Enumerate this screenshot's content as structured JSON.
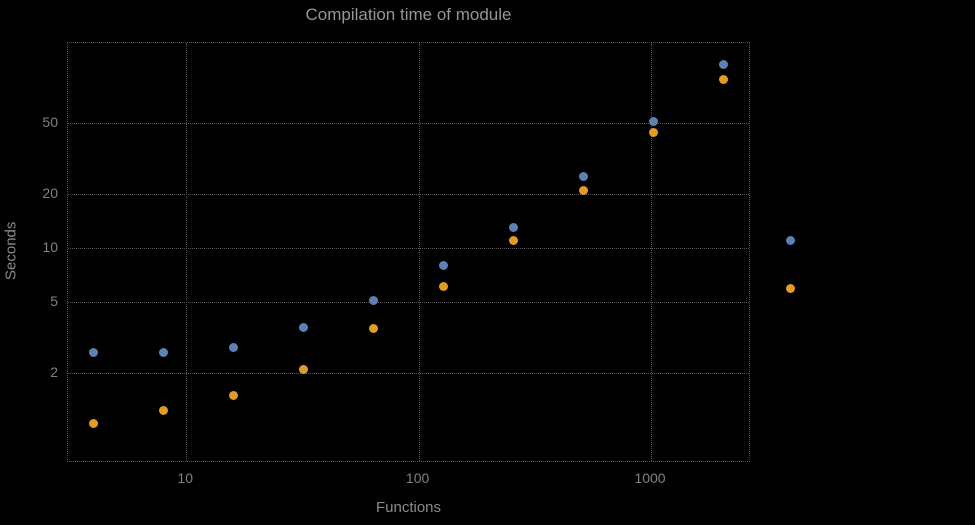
{
  "chart_data": {
    "type": "scatter",
    "title": "Compilation time of module",
    "xlabel": "Functions",
    "ylabel": "Seconds",
    "x_scale": "log",
    "y_scale": "log",
    "grid": true,
    "xlim": [
      3.1,
      2640
    ],
    "ylim": [
      0.65,
      139
    ],
    "x_ticks": [
      10,
      100,
      1000
    ],
    "y_ticks": [
      2,
      5,
      10,
      20,
      50
    ],
    "x": [
      4,
      8,
      16,
      32,
      64,
      128,
      256,
      512,
      1024,
      2048
    ],
    "series": [
      {
        "color": "#5E81B5",
        "marker": "circle",
        "values": [
          2.6,
          2.6,
          2.8,
          3.6,
          5.1,
          8,
          13,
          25,
          51,
          105
        ]
      },
      {
        "color": "#E19C24",
        "marker": "circle",
        "values": [
          1.05,
          1.25,
          1.5,
          2.1,
          3.55,
          6.1,
          11,
          21,
          44,
          87
        ]
      }
    ],
    "legend": {
      "position": "right-of-plot",
      "marker_colors": [
        "#5E81B5",
        "#E19C24"
      ]
    }
  },
  "colors": {
    "background": "#000000",
    "grid": "#575757",
    "title": "#969696",
    "tick": "#828282",
    "axis_label": "#8a8a8a",
    "series_blue": "#5E81B5",
    "series_orange": "#E19C24"
  }
}
